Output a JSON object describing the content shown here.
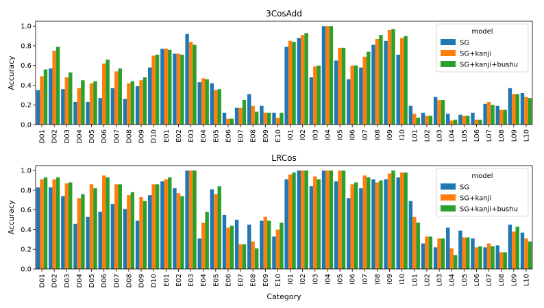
{
  "figure": {
    "xlabel": "Category"
  },
  "chart_data": [
    {
      "type": "bar",
      "title": "3CosAdd",
      "xlabel": "",
      "ylabel": "Accuracy",
      "ylim": [
        0,
        1.05
      ],
      "yticks": [
        "0.0",
        "0.2",
        "0.4",
        "0.6",
        "0.8",
        "1.0"
      ],
      "legend": {
        "title": "model",
        "placement": "top-right"
      },
      "categories": [
        "D01",
        "D02",
        "D03",
        "D04",
        "D05",
        "D06",
        "D07",
        "D08",
        "D09",
        "D10",
        "E01",
        "E02",
        "E03",
        "E04",
        "E05",
        "E06",
        "E07",
        "E08",
        "E09",
        "E10",
        "I01",
        "I02",
        "I03",
        "I04",
        "I05",
        "I06",
        "I07",
        "I08",
        "I09",
        "I10",
        "L01",
        "L02",
        "L03",
        "L04",
        "L05",
        "L06",
        "L07",
        "L08",
        "L09",
        "L10"
      ],
      "series": [
        {
          "name": "SG",
          "color": "#1f77b4",
          "values": [
            0.35,
            0.57,
            0.36,
            0.23,
            0.23,
            0.27,
            0.37,
            0.26,
            0.39,
            0.58,
            0.77,
            0.72,
            0.92,
            0.43,
            0.42,
            0.12,
            0.17,
            0.31,
            0.19,
            0.12,
            0.79,
            0.88,
            0.48,
            1.0,
            0.65,
            0.46,
            0.58,
            0.81,
            0.85,
            0.71,
            0.19,
            0.12,
            0.28,
            0.11,
            0.1,
            0.12,
            0.21,
            0.19,
            0.37,
            0.32
          ]
        },
        {
          "name": "SG+kanji",
          "color": "#ff7f0e",
          "values": [
            0.49,
            0.75,
            0.48,
            0.37,
            0.42,
            0.62,
            0.54,
            0.42,
            0.45,
            0.7,
            0.77,
            0.72,
            0.84,
            0.47,
            0.35,
            0.06,
            0.17,
            0.19,
            0.12,
            0.07,
            0.85,
            0.91,
            0.59,
            1.0,
            0.78,
            0.6,
            0.69,
            0.87,
            0.96,
            0.88,
            0.11,
            0.09,
            0.25,
            0.04,
            0.09,
            0.05,
            0.23,
            0.15,
            0.31,
            0.28
          ]
        },
        {
          "name": "SG+kanji+bushu",
          "color": "#2ca02c",
          "values": [
            0.56,
            0.79,
            0.53,
            0.45,
            0.44,
            0.66,
            0.57,
            0.44,
            0.48,
            0.71,
            0.76,
            0.71,
            0.81,
            0.46,
            0.36,
            0.06,
            0.25,
            0.13,
            0.12,
            0.12,
            0.84,
            0.93,
            0.6,
            1.0,
            0.78,
            0.6,
            0.74,
            0.91,
            0.97,
            0.9,
            0.07,
            0.09,
            0.25,
            0.05,
            0.09,
            0.05,
            0.2,
            0.15,
            0.31,
            0.27
          ]
        }
      ]
    },
    {
      "type": "bar",
      "title": "LRCos",
      "xlabel": "Category",
      "ylabel": "Accuracy",
      "ylim": [
        0,
        1.05
      ],
      "yticks": [
        "0.0",
        "0.2",
        "0.4",
        "0.6",
        "0.8",
        "1.0"
      ],
      "legend": {
        "title": "model",
        "placement": "top-right"
      },
      "categories": [
        "D01",
        "D02",
        "D03",
        "D04",
        "D05",
        "D06",
        "D07",
        "D08",
        "D09",
        "D10",
        "E01",
        "E02",
        "E03",
        "E04",
        "E05",
        "E06",
        "E07",
        "E08",
        "E09",
        "E10",
        "I01",
        "I02",
        "I03",
        "I04",
        "I05",
        "I06",
        "I07",
        "I08",
        "I09",
        "I10",
        "L01",
        "L02",
        "L03",
        "L04",
        "L05",
        "L06",
        "L07",
        "L08",
        "L09",
        "L10"
      ],
      "series": [
        {
          "name": "SG",
          "color": "#1f77b4",
          "values": [
            0.83,
            0.83,
            0.74,
            0.46,
            0.53,
            0.58,
            0.66,
            0.61,
            0.49,
            0.75,
            0.89,
            0.82,
            1.0,
            0.31,
            0.81,
            0.55,
            0.5,
            0.45,
            0.49,
            0.33,
            0.91,
            1.0,
            0.84,
            1.0,
            0.89,
            0.72,
            0.82,
            0.91,
            0.91,
            0.93,
            0.69,
            0.26,
            0.22,
            0.42,
            0.39,
            0.31,
            0.22,
            0.24,
            0.45,
            0.37
          ]
        },
        {
          "name": "SG+kanji",
          "color": "#ff7f0e",
          "values": [
            0.91,
            0.91,
            0.87,
            0.72,
            0.86,
            0.95,
            0.86,
            0.75,
            0.73,
            0.86,
            0.91,
            0.77,
            1.0,
            0.47,
            0.76,
            0.42,
            0.25,
            0.28,
            0.53,
            0.4,
            0.96,
            1.0,
            0.94,
            1.0,
            1.0,
            0.86,
            0.95,
            0.88,
            0.97,
            0.98,
            0.53,
            0.33,
            0.31,
            0.21,
            0.32,
            0.22,
            0.26,
            0.17,
            0.38,
            0.31
          ]
        },
        {
          "name": "SG+kanji+bushu",
          "color": "#2ca02c",
          "values": [
            0.93,
            0.93,
            0.88,
            0.76,
            0.82,
            0.93,
            0.86,
            0.78,
            0.69,
            0.86,
            0.93,
            0.74,
            1.0,
            0.58,
            0.84,
            0.44,
            0.25,
            0.21,
            0.49,
            0.47,
            0.98,
            1.0,
            0.91,
            1.0,
            1.0,
            0.88,
            0.93,
            0.9,
            1.0,
            0.98,
            0.47,
            0.33,
            0.31,
            0.14,
            0.32,
            0.23,
            0.23,
            0.17,
            0.43,
            0.28
          ]
        }
      ]
    }
  ]
}
